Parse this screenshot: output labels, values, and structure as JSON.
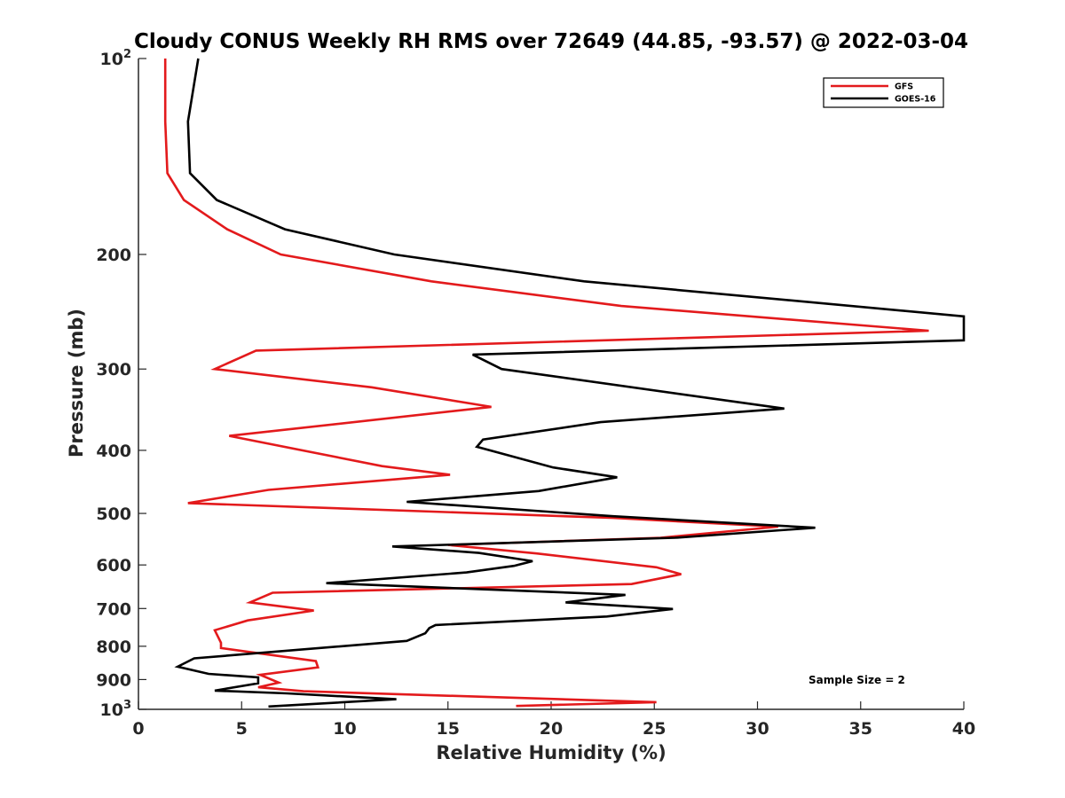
{
  "chart_data": {
    "type": "line",
    "title": "Cloudy CONUS Weekly RH RMS over 72649 (44.85, -93.57) @ 2022-03-04",
    "xlabel": "Relative Humidity (%)",
    "ylabel": "Pressure (mb)",
    "xlim": [
      0,
      40
    ],
    "ylim": [
      100,
      1000
    ],
    "y_scale": "log",
    "y_reversed": true,
    "grid": false,
    "legend_position": "top-right",
    "annotation": "Sample Size = 2",
    "x_ticks": [
      0,
      5,
      10,
      15,
      20,
      25,
      30,
      35,
      40
    ],
    "x_tick_labels": [
      "0",
      "5",
      "10",
      "15",
      "20",
      "25",
      "30",
      "35",
      "40"
    ],
    "y_ticks": [
      {
        "value": 100,
        "label": "10",
        "sup": "2"
      },
      {
        "value": 200,
        "label": "200",
        "sup": ""
      },
      {
        "value": 300,
        "label": "300",
        "sup": ""
      },
      {
        "value": 400,
        "label": "400",
        "sup": ""
      },
      {
        "value": 500,
        "label": "500",
        "sup": ""
      },
      {
        "value": 600,
        "label": "600",
        "sup": ""
      },
      {
        "value": 700,
        "label": "700",
        "sup": ""
      },
      {
        "value": 800,
        "label": "800",
        "sup": ""
      },
      {
        "value": 900,
        "label": "900",
        "sup": ""
      },
      {
        "value": 1000,
        "label": "10",
        "sup": "3"
      }
    ],
    "series": [
      {
        "name": "GFS",
        "color": "#e31a1c",
        "points": [
          [
            1.3,
            100
          ],
          [
            1.3,
            125
          ],
          [
            1.4,
            150
          ],
          [
            2.2,
            165
          ],
          [
            4.3,
            183
          ],
          [
            6.9,
            200
          ],
          [
            14.2,
            220
          ],
          [
            23.4,
            240
          ],
          [
            38.3,
            262
          ],
          [
            5.7,
            281
          ],
          [
            3.7,
            300
          ],
          [
            11.3,
            320
          ],
          [
            17.1,
            343
          ],
          [
            4.4,
            380
          ],
          [
            11.8,
            423
          ],
          [
            15.1,
            436
          ],
          [
            6.3,
            460
          ],
          [
            2.4,
            482
          ],
          [
            23.0,
            508
          ],
          [
            31.0,
            524
          ],
          [
            25.3,
            545
          ],
          [
            15.0,
            559
          ],
          [
            19.3,
            576
          ],
          [
            25.1,
            605
          ],
          [
            26.3,
            620
          ],
          [
            23.9,
            642
          ],
          [
            6.5,
            662
          ],
          [
            5.4,
            685
          ],
          [
            8.5,
            705
          ],
          [
            5.3,
            730
          ],
          [
            3.7,
            756
          ],
          [
            4.0,
            790
          ],
          [
            4.0,
            805
          ],
          [
            5.8,
            820
          ],
          [
            8.6,
            843
          ],
          [
            8.7,
            862
          ],
          [
            5.9,
            885
          ],
          [
            6.8,
            910
          ],
          [
            5.8,
            925
          ],
          [
            8.0,
            938
          ],
          [
            25.1,
            975
          ],
          [
            18.3,
            988
          ]
        ]
      },
      {
        "name": "GOES-16",
        "color": "#000000",
        "points": [
          [
            2.9,
            100
          ],
          [
            2.4,
            125
          ],
          [
            2.5,
            150
          ],
          [
            3.8,
            165
          ],
          [
            7.1,
            183
          ],
          [
            12.4,
            200
          ],
          [
            21.6,
            220
          ],
          [
            40.0,
            249
          ],
          [
            40.0,
            271
          ],
          [
            16.2,
            285
          ],
          [
            17.6,
            300
          ],
          [
            31.3,
            345
          ],
          [
            22.4,
            362
          ],
          [
            16.7,
            385
          ],
          [
            16.4,
            395
          ],
          [
            20.1,
            425
          ],
          [
            23.2,
            440
          ],
          [
            19.4,
            462
          ],
          [
            13.0,
            480
          ],
          [
            23.0,
            505
          ],
          [
            32.8,
            526
          ],
          [
            26.0,
            545
          ],
          [
            12.3,
            562
          ],
          [
            16.5,
            575
          ],
          [
            19.1,
            592
          ],
          [
            18.2,
            602
          ],
          [
            15.9,
            616
          ],
          [
            9.1,
            640
          ],
          [
            23.6,
            667
          ],
          [
            20.7,
            685
          ],
          [
            25.9,
            701
          ],
          [
            22.7,
            720
          ],
          [
            14.4,
            742
          ],
          [
            14.1,
            750
          ],
          [
            13.9,
            764
          ],
          [
            13.0,
            785
          ],
          [
            2.7,
            835
          ],
          [
            1.9,
            860
          ],
          [
            3.4,
            882
          ],
          [
            5.8,
            893
          ],
          [
            5.8,
            912
          ],
          [
            3.7,
            936
          ],
          [
            7.2,
            945
          ],
          [
            12.5,
            965
          ],
          [
            6.3,
            990
          ]
        ]
      }
    ]
  }
}
